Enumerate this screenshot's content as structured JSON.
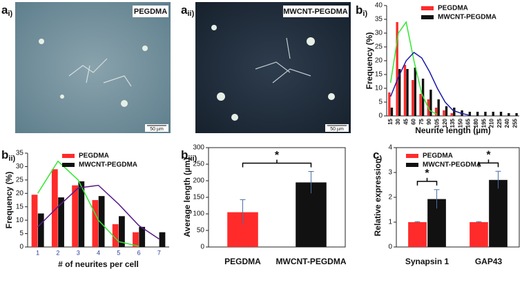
{
  "panels": [
    {
      "letter": "a",
      "sub": "i)"
    },
    {
      "letter": "a",
      "sub": "ii)"
    },
    {
      "letter": "b",
      "sub": "i)"
    },
    {
      "letter": "b",
      "sub": "ii)"
    },
    {
      "letter": "b",
      "sub": "iii)"
    },
    {
      "letter": "c",
      "sub": ")"
    }
  ],
  "images": [
    {
      "label": "PEGDMA",
      "scale_bar": "50 µm"
    },
    {
      "label": "MWCNT-PEGDMA",
      "scale_bar": "50 µm"
    }
  ],
  "chart_data": [
    {
      "type": "bar",
      "xlabel": "Neurite length (µm)",
      "ylabel": "Frequency (%)",
      "xtick_rotation": 90,
      "legend": "top-right",
      "frame": false,
      "categories": [
        15,
        30,
        45,
        60,
        75,
        90,
        105,
        120,
        135,
        150,
        165,
        180,
        195,
        210,
        225,
        240,
        255
      ],
      "series": [
        {
          "name": "PEGDMA",
          "color": "#ff2b2b",
          "values": [
            8.5,
            34,
            18.5,
            13,
            8,
            6,
            3,
            2,
            1,
            0,
            0,
            0,
            0,
            0,
            0,
            0,
            0
          ]
        },
        {
          "name": "MWCNT-PEGDMA",
          "color": "#111111",
          "values": [
            3,
            17,
            17,
            17.5,
            13.5,
            9.5,
            6,
            3.5,
            3,
            2,
            1.5,
            1.5,
            1.5,
            1.5,
            1.5,
            1,
            1
          ]
        }
      ],
      "fits": [
        {
          "color": "#2ee82e",
          "values": [
            12,
            30,
            34,
            20,
            8,
            2,
            0.5,
            null,
            null,
            null,
            null,
            null,
            null,
            null,
            null,
            null,
            null
          ]
        },
        {
          "color": "#1a1aa8",
          "values": [
            7,
            14,
            20,
            23,
            21,
            16,
            10,
            5,
            2,
            1,
            0.3,
            null,
            null,
            null,
            null,
            null,
            null
          ]
        }
      ],
      "ylim": [
        0,
        40
      ],
      "yticks": [
        0,
        5,
        10,
        15,
        20,
        25,
        30,
        35,
        40
      ]
    },
    {
      "type": "bar",
      "xlabel": "# of neurites per cell",
      "ylabel": "Frequency (%)",
      "legend": "top-left",
      "frame": false,
      "categories": [
        1,
        2,
        3,
        4,
        5,
        6,
        7
      ],
      "series": [
        {
          "name": "PEGDMA",
          "color": "#ff2b2b",
          "values": [
            19.5,
            29,
            23,
            17.5,
            8.5,
            5.5,
            0
          ]
        },
        {
          "name": "MWCNT-PEGDMA",
          "color": "#111111",
          "values": [
            12.5,
            18.5,
            24.5,
            19,
            11.5,
            7.5,
            5.5
          ]
        }
      ],
      "fits": [
        {
          "color": "#2ee82e",
          "values": [
            20,
            32,
            25,
            10,
            2,
            0.3,
            null
          ]
        },
        {
          "color": "#5a1a8a",
          "values": [
            7.5,
            15,
            22,
            23,
            16,
            8,
            3
          ]
        }
      ],
      "ylim": [
        0,
        35
      ],
      "yticks": [
        0,
        5,
        10,
        15,
        20,
        25,
        30,
        35
      ]
    },
    {
      "type": "bar",
      "ylabel": "Average length (µm)",
      "frame": true,
      "categories": [
        "PEGDMA",
        "MWCNT-PEGDMA"
      ],
      "series": [
        {
          "colors": [
            "#ff2b2b",
            "#111111"
          ],
          "values": [
            105,
            195
          ],
          "errors": [
            38,
            33
          ]
        }
      ],
      "annotations": [
        "*"
      ],
      "ylim": [
        0,
        300
      ],
      "yticks": [
        0,
        50,
        100,
        150,
        200,
        250,
        300
      ]
    },
    {
      "type": "bar",
      "ylabel": "Relative expression",
      "legend": "top-left",
      "frame": true,
      "categories": [
        "Synapsin 1",
        "GAP43"
      ],
      "series": [
        {
          "name": "PEGDMA",
          "color": "#ff2b2b",
          "values": [
            1,
            1
          ],
          "errors": [
            0.02,
            0.02
          ]
        },
        {
          "name": "MWCNT-PEGDMA",
          "color": "#111111",
          "values": [
            1.93,
            2.7
          ],
          "errors": [
            0.38,
            0.35
          ]
        }
      ],
      "annotations": [
        "*",
        "*"
      ],
      "ylim": [
        0,
        4
      ],
      "yticks": [
        0,
        1,
        2,
        3,
        4
      ]
    }
  ]
}
